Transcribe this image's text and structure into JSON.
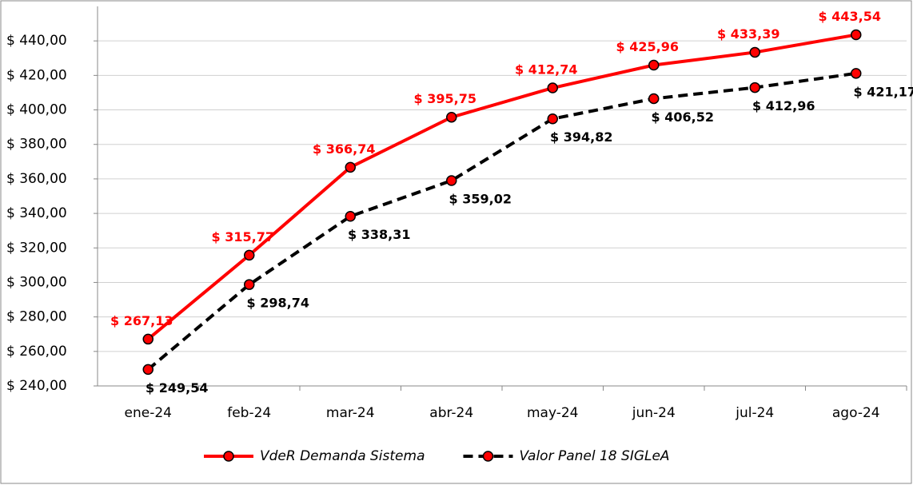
{
  "chart_data": {
    "type": "line",
    "categories": [
      "ene-24",
      "feb-24",
      "mar-24",
      "abr-24",
      "may-24",
      "jun-24",
      "jul-24",
      "ago-24"
    ],
    "series": [
      {
        "name": "VdeR Demanda Sistema",
        "color": "#ff0000",
        "marker_color": "#ff0000",
        "dash": false,
        "values": [
          267.13,
          315.77,
          366.74,
          395.75,
          412.74,
          425.96,
          433.39,
          443.54
        ],
        "value_labels": [
          "$ 267,13",
          "$ 315,77",
          "$ 366,74",
          "$ 395,75",
          "$ 412,74",
          "$ 425,96",
          "$ 433,39",
          "$ 443,54"
        ]
      },
      {
        "name": "Valor Panel 18 SIGLeA",
        "color": "#000000",
        "marker_color": "#ff0000",
        "dash": true,
        "values": [
          249.54,
          298.74,
          338.31,
          359.02,
          394.82,
          406.52,
          412.96,
          421.17
        ],
        "value_labels": [
          "$ 249,54",
          "$ 298,74",
          "$ 338,31",
          "$ 359,02",
          "$ 394,82",
          "$ 406,52",
          "$ 412,96",
          "$ 421,17"
        ]
      }
    ],
    "ylim": [
      240,
      460
    ],
    "yticks": [
      {
        "value": 240,
        "label": "$ 240,00"
      },
      {
        "value": 260,
        "label": "$ 260,00"
      },
      {
        "value": 280,
        "label": "$ 280,00"
      },
      {
        "value": 300,
        "label": "$ 300,00"
      },
      {
        "value": 320,
        "label": "$ 320,00"
      },
      {
        "value": 340,
        "label": "$ 340,00"
      },
      {
        "value": 360,
        "label": "$ 360,00"
      },
      {
        "value": 380,
        "label": "$ 380,00"
      },
      {
        "value": 400,
        "label": "$ 400,00"
      },
      {
        "value": 420,
        "label": "$ 420,00"
      },
      {
        "value": 440,
        "label": "$ 440,00"
      }
    ],
    "grid": true,
    "legend": "bottom"
  }
}
